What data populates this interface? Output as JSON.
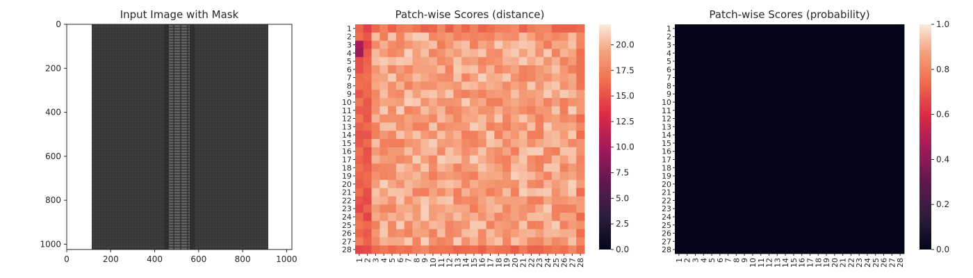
{
  "chart_data": [
    {
      "type": "image",
      "title": "Input Image with Mask",
      "xlabel": "",
      "ylabel": "",
      "xlim": [
        0,
        1024
      ],
      "ylim": [
        1024,
        0
      ],
      "x_ticks": [
        0,
        200,
        400,
        600,
        800,
        1000
      ],
      "y_ticks": [
        0,
        200,
        400,
        600,
        800,
        1000
      ],
      "content": "zipper",
      "colors": {
        "fabric": "#3a3a3a",
        "teeth": "#5c5c5c",
        "background": "#ffffff"
      }
    },
    {
      "type": "heatmap",
      "title": "Patch-wise Scores (distance)",
      "rows": 28,
      "cols": 28,
      "x_ticks": [
        "1",
        "2",
        "3",
        "4",
        "5",
        "6",
        "7",
        "8",
        "9",
        "10",
        "11",
        "12",
        "13",
        "14",
        "15",
        "16",
        "17",
        "18",
        "19",
        "20",
        "21",
        "22",
        "23",
        "24",
        "25",
        "26",
        "27",
        "28"
      ],
      "y_ticks": [
        "1",
        "2",
        "3",
        "4",
        "5",
        "6",
        "7",
        "8",
        "9",
        "10",
        "11",
        "12",
        "13",
        "14",
        "15",
        "16",
        "17",
        "18",
        "19",
        "20",
        "21",
        "22",
        "23",
        "24",
        "25",
        "26",
        "27",
        "28"
      ],
      "colorbar": {
        "min": 0,
        "max": 22,
        "ticks": [
          "0.0",
          "2.5",
          "5.0",
          "7.5",
          "10.0",
          "12.5",
          "15.0",
          "17.5",
          "20.0"
        ]
      },
      "colormap": "rocket",
      "value_range": [
        8,
        21.5
      ],
      "notes_values": {
        "column_1_rows_3_4": 9,
        "column_2_typical": 15,
        "interior_typical": 18.5
      }
    },
    {
      "type": "heatmap",
      "title": "Patch-wise Scores (probability)",
      "rows": 28,
      "cols": 28,
      "x_ticks": [
        "1",
        "2",
        "3",
        "4",
        "5",
        "6",
        "7",
        "8",
        "9",
        "10",
        "11",
        "12",
        "13",
        "14",
        "15",
        "16",
        "17",
        "18",
        "19",
        "20",
        "21",
        "22",
        "23",
        "24",
        "25",
        "26",
        "27",
        "28"
      ],
      "y_ticks": [
        "1",
        "2",
        "3",
        "4",
        "5",
        "6",
        "7",
        "8",
        "9",
        "10",
        "11",
        "12",
        "13",
        "14",
        "15",
        "16",
        "17",
        "18",
        "19",
        "20",
        "21",
        "22",
        "23",
        "24",
        "25",
        "26",
        "27",
        "28"
      ],
      "colorbar": {
        "min": 0,
        "max": 1,
        "ticks": [
          "0.0",
          "0.2",
          "0.4",
          "0.6",
          "0.8",
          "1.0"
        ]
      },
      "colormap": "rocket",
      "uniform_value": 0.0
    }
  ]
}
